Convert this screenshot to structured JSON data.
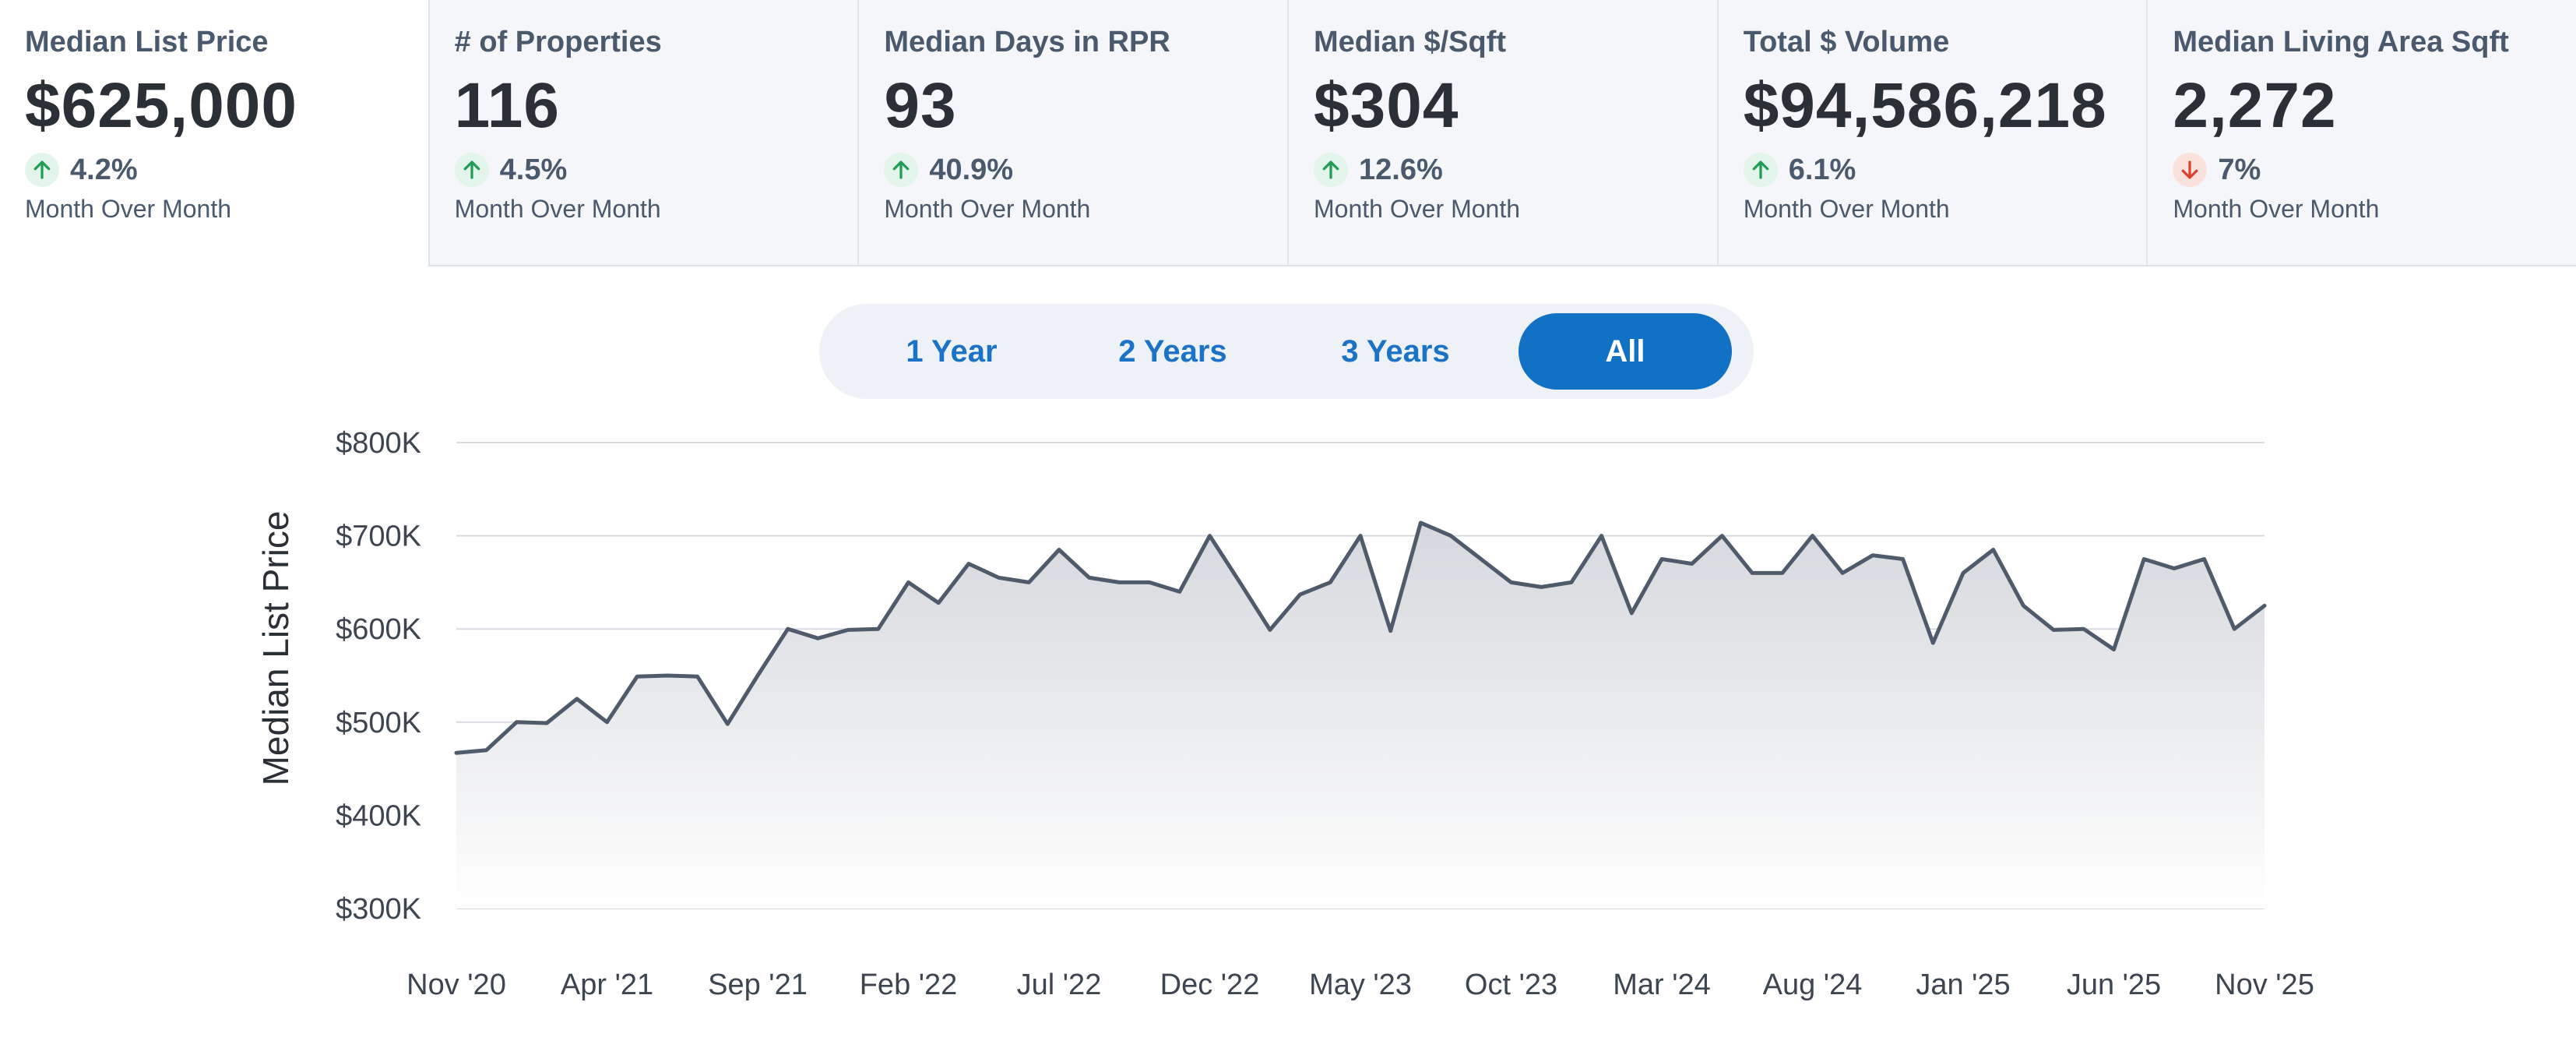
{
  "metrics": [
    {
      "title": "Median List Price",
      "value": "$625,000",
      "change": "4.2%",
      "direction": "up",
      "period": "Month Over Month"
    },
    {
      "title": "# of Properties",
      "value": "116",
      "change": "4.5%",
      "direction": "up",
      "period": "Month Over Month"
    },
    {
      "title": "Median Days in RPR",
      "value": "93",
      "change": "40.9%",
      "direction": "up",
      "period": "Month Over Month"
    },
    {
      "title": "Median $/Sqft",
      "value": "$304",
      "change": "12.6%",
      "direction": "up",
      "period": "Month Over Month"
    },
    {
      "title": "Total $ Volume",
      "value": "$94,586,218",
      "change": "6.1%",
      "direction": "up",
      "period": "Month Over Month"
    },
    {
      "title": "Median Living Area Sqft",
      "value": "2,272",
      "change": "7%",
      "direction": "down",
      "period": "Month Over Month"
    }
  ],
  "range_tabs": {
    "one_year": "1 Year",
    "two_years": "2 Years",
    "three_years": "3 Years",
    "all": "All",
    "selected": "All"
  },
  "colors": {
    "accent": "#1171c4",
    "line": "#4f5b6b",
    "up": "#1f9d55",
    "down": "#d9412b"
  },
  "chart_data": {
    "type": "area",
    "ylabel": "Median List Price",
    "ylim": [
      300000,
      800000
    ],
    "yticks": [
      {
        "value": 800000,
        "label": "$800K"
      },
      {
        "value": 700000,
        "label": "$700K"
      },
      {
        "value": 600000,
        "label": "$600K"
      },
      {
        "value": 500000,
        "label": "$500K"
      },
      {
        "value": 400000,
        "label": "$400K"
      },
      {
        "value": 300000,
        "label": "$300K"
      }
    ],
    "xticks": [
      "Nov '20",
      "Apr '21",
      "Sep '21",
      "Feb '22",
      "Jul '22",
      "Dec '22",
      "May '23",
      "Oct '23",
      "Mar '24",
      "Aug '24",
      "Jan '25",
      "Jun '25",
      "Nov '25"
    ],
    "grid": true,
    "x": [
      "Nov '20",
      "Dec '20",
      "Jan '21",
      "Feb '21",
      "Mar '21",
      "Apr '21",
      "May '21",
      "Jun '21",
      "Jul '21",
      "Aug '21",
      "Sep '21",
      "Oct '21",
      "Nov '21",
      "Dec '21",
      "Jan '22",
      "Feb '22",
      "Mar '22",
      "Apr '22",
      "May '22",
      "Jun '22",
      "Jul '22",
      "Aug '22",
      "Sep '22",
      "Oct '22",
      "Nov '22",
      "Dec '22",
      "Jan '23",
      "Feb '23",
      "Mar '23",
      "Apr '23",
      "May '23",
      "Jun '23",
      "Jul '23",
      "Aug '23",
      "Sep '23",
      "Oct '23",
      "Nov '23",
      "Dec '23",
      "Jan '24",
      "Feb '24",
      "Mar '24",
      "Apr '24",
      "May '24",
      "Jun '24",
      "Jul '24",
      "Aug '24",
      "Sep '24",
      "Oct '24",
      "Nov '24",
      "Dec '24",
      "Jan '25",
      "Feb '25",
      "Mar '25",
      "Apr '25",
      "May '25",
      "Jun '25",
      "Jul '25",
      "Aug '25",
      "Sep '25",
      "Oct '25",
      "Nov '25"
    ],
    "series": [
      {
        "values": [
          467000,
          470000,
          500000,
          499000,
          525000,
          500000,
          549000,
          550000,
          549000,
          498000,
          550000,
          600000,
          590000,
          599000,
          600000,
          650000,
          628000,
          670000,
          655000,
          650000,
          685000,
          655000,
          650000,
          650000,
          640000,
          700000,
          650000,
          599000,
          637000,
          650000,
          700000,
          598000,
          714000,
          700000,
          675000,
          650000,
          645000,
          650000,
          700000,
          617000,
          675000,
          670000,
          700000,
          660000,
          660000,
          700000,
          660000,
          679000,
          675000,
          585000,
          660000,
          685000,
          625000,
          599000,
          600000,
          578000,
          675000,
          665000,
          675000,
          600000,
          625000
        ]
      }
    ]
  }
}
